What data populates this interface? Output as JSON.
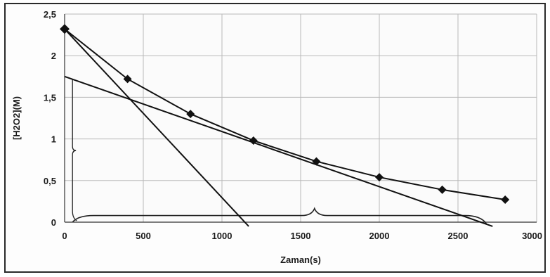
{
  "chart_data": {
    "type": "line",
    "xlabel": "Zaman(s)",
    "ylabel": "[H2O2](M)",
    "xlim": [
      0,
      3000
    ],
    "ylim": [
      0,
      2.5
    ],
    "x_ticks": [
      0,
      500,
      1000,
      1500,
      2000,
      2500,
      3000
    ],
    "x_tick_labels": [
      "0",
      "500",
      "1000",
      "1500",
      "2000",
      "2500",
      "3000"
    ],
    "y_ticks": [
      0,
      0.5,
      1,
      1.5,
      2,
      2.5
    ],
    "y_tick_labels": [
      "0",
      "0,5",
      "1",
      "1,5",
      "2",
      "2,5"
    ],
    "grid": true,
    "series": [
      {
        "marker": "diamond",
        "color": "#111111",
        "x": [
          0,
          400,
          800,
          1200,
          1600,
          2000,
          2400,
          2800
        ],
        "y": [
          2.32,
          1.72,
          1.3,
          0.98,
          0.73,
          0.54,
          0.39,
          0.27
        ]
      }
    ],
    "tangent_lines": [
      {
        "x": [
          0,
          1170
        ],
        "y": [
          2.32,
          -0.05
        ]
      },
      {
        "x": [
          0,
          2720
        ],
        "y": [
          1.75,
          -0.05
        ]
      }
    ],
    "annotation_braces": [
      {
        "orientation": "vertical",
        "x": 50,
        "y_from": 0,
        "y_to": 1.72
      },
      {
        "orientation": "horizontal",
        "y": 0.08,
        "x_from": 50,
        "x_to": 2680
      }
    ]
  }
}
